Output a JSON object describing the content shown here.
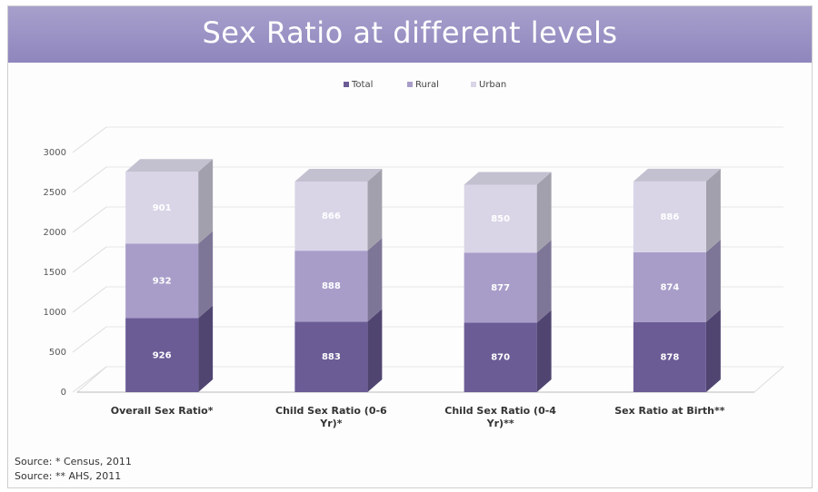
{
  "chart_data": {
    "type": "bar",
    "stacked": true,
    "title": "Sex Ratio  at different levels",
    "categories": [
      "Overall Sex Ratio*",
      "Child Sex Ratio (0-6 Yr)*",
      "Child Sex Ratio (0-4 Yr)**",
      "Sex Ratio at Birth**"
    ],
    "series": [
      {
        "name": "Total",
        "color": "#6b5c96",
        "values": [
          926,
          883,
          870,
          878
        ]
      },
      {
        "name": "Rural",
        "color": "#a89dc9",
        "values": [
          932,
          888,
          877,
          874
        ]
      },
      {
        "name": "Urban",
        "color": "#d9d5e7",
        "values": [
          901,
          866,
          850,
          886
        ]
      }
    ],
    "ylim": [
      0,
      3000
    ],
    "yticks": [
      0,
      500,
      1000,
      1500,
      2000,
      2500,
      3000
    ],
    "grid": true,
    "sources": [
      "Source: * Census, 2011",
      "Source: ** AHS, 2011"
    ]
  }
}
